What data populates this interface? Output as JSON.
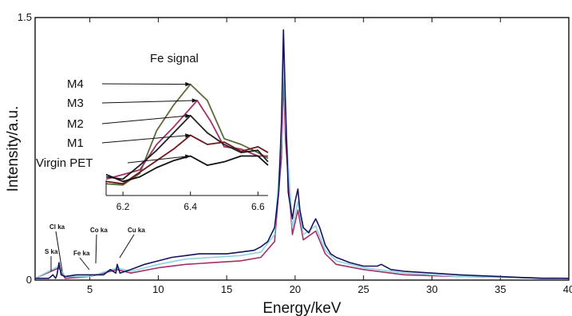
{
  "chart_data": {
    "type": "line",
    "xlabel": "Energy/keV",
    "ylabel": "Intensity/a.u.",
    "xlim": [
      1,
      40
    ],
    "ylim": [
      0,
      1.5
    ],
    "x_ticks": [
      5,
      10,
      15,
      20,
      25,
      30,
      35,
      40
    ],
    "x_tick_labels": [
      "5",
      "10",
      "15",
      "20",
      "25",
      "30",
      "35",
      "40"
    ],
    "y_ticks": [
      0,
      1.5
    ],
    "y_tick_labels": [
      "0",
      "1.5"
    ],
    "colors": {
      "navy": "#14145e",
      "cyan": "#8fd3e0",
      "magenta": "#a0306a",
      "olive": "#5c6b3a",
      "dark": "#222222"
    },
    "series": [
      {
        "color": "#14145e",
        "points": [
          [
            1,
            0.01
          ],
          [
            2,
            0.01
          ],
          [
            2.3,
            0.03
          ],
          [
            2.5,
            0.01
          ],
          [
            2.6,
            0.03
          ],
          [
            2.75,
            0.1
          ],
          [
            2.9,
            0.03
          ],
          [
            3.2,
            0.02
          ],
          [
            4,
            0.03
          ],
          [
            5,
            0.03
          ],
          [
            6,
            0.03
          ],
          [
            6.5,
            0.06
          ],
          [
            6.9,
            0.04
          ],
          [
            7,
            0.09
          ],
          [
            7.2,
            0.04
          ],
          [
            8,
            0.06
          ],
          [
            9,
            0.09
          ],
          [
            10,
            0.11
          ],
          [
            11,
            0.13
          ],
          [
            12,
            0.14
          ],
          [
            13,
            0.15
          ],
          [
            14,
            0.15
          ],
          [
            15,
            0.15
          ],
          [
            16,
            0.16
          ],
          [
            17,
            0.17
          ],
          [
            17.5,
            0.19
          ],
          [
            18,
            0.22
          ],
          [
            18.5,
            0.3
          ],
          [
            18.8,
            0.5
          ],
          [
            19,
            0.9
          ],
          [
            19.15,
            1.43
          ],
          [
            19.3,
            1.0
          ],
          [
            19.5,
            0.5
          ],
          [
            19.8,
            0.35
          ],
          [
            20,
            0.45
          ],
          [
            20.2,
            0.52
          ],
          [
            20.35,
            0.4
          ],
          [
            20.6,
            0.3
          ],
          [
            21,
            0.27
          ],
          [
            21.3,
            0.32
          ],
          [
            21.5,
            0.35
          ],
          [
            21.8,
            0.3
          ],
          [
            22.2,
            0.2
          ],
          [
            22.6,
            0.15
          ],
          [
            23,
            0.13
          ],
          [
            24,
            0.1
          ],
          [
            25,
            0.08
          ],
          [
            26,
            0.08
          ],
          [
            26.3,
            0.09
          ],
          [
            27,
            0.06
          ],
          [
            28,
            0.05
          ],
          [
            30,
            0.04
          ],
          [
            32,
            0.03
          ],
          [
            35,
            0.02
          ],
          [
            38,
            0.01
          ],
          [
            40,
            0.01
          ]
        ]
      },
      {
        "color": "#8fd3e0",
        "points": [
          [
            1,
            0.01
          ],
          [
            2.75,
            0.08
          ],
          [
            3.2,
            0.02
          ],
          [
            5,
            0.02
          ],
          [
            7,
            0.07
          ],
          [
            8,
            0.05
          ],
          [
            10,
            0.09
          ],
          [
            12,
            0.12
          ],
          [
            14,
            0.13
          ],
          [
            16,
            0.14
          ],
          [
            17.5,
            0.16
          ],
          [
            18.5,
            0.26
          ],
          [
            19,
            0.8
          ],
          [
            19.15,
            1.3
          ],
          [
            19.3,
            0.9
          ],
          [
            19.8,
            0.3
          ],
          [
            20.2,
            0.45
          ],
          [
            20.6,
            0.26
          ],
          [
            21.5,
            0.31
          ],
          [
            22.2,
            0.17
          ],
          [
            23,
            0.11
          ],
          [
            25,
            0.07
          ],
          [
            28,
            0.04
          ],
          [
            32,
            0.02
          ],
          [
            40,
            0.01
          ]
        ]
      },
      {
        "color": "#a0306a",
        "points": [
          [
            1,
            0.01
          ],
          [
            2.75,
            0.07
          ],
          [
            3.2,
            0.01
          ],
          [
            5,
            0.02
          ],
          [
            7,
            0.06
          ],
          [
            8,
            0.04
          ],
          [
            10,
            0.07
          ],
          [
            12,
            0.09
          ],
          [
            14,
            0.1
          ],
          [
            16,
            0.11
          ],
          [
            17.5,
            0.13
          ],
          [
            18.5,
            0.22
          ],
          [
            19,
            0.7
          ],
          [
            19.15,
            1.15
          ],
          [
            19.3,
            0.8
          ],
          [
            19.8,
            0.26
          ],
          [
            20.2,
            0.4
          ],
          [
            20.6,
            0.23
          ],
          [
            21.5,
            0.28
          ],
          [
            22.2,
            0.15
          ],
          [
            23,
            0.09
          ],
          [
            25,
            0.06
          ],
          [
            28,
            0.03
          ],
          [
            32,
            0.02
          ],
          [
            40,
            0.01
          ]
        ]
      }
    ],
    "annotations": [
      {
        "text": "S ka",
        "x": 2.3
      },
      {
        "text": "Cl ka",
        "x": 2.75
      },
      {
        "text": "Fe ka",
        "x": 6.5
      },
      {
        "text": "Co ka",
        "x": 6.9
      },
      {
        "text": "Cu ka",
        "x": 8.0
      }
    ],
    "inset": {
      "title": "Fe signal",
      "xlim": [
        6.15,
        6.63
      ],
      "ylim": [
        0,
        1
      ],
      "x_ticks": [
        6.2,
        6.4,
        6.6
      ],
      "x_tick_labels": [
        "6.2",
        "6.4",
        "6.6"
      ],
      "series": [
        {
          "name": "M4",
          "color": "#5c6b3a",
          "arrow_x": 6.4,
          "arrow_y": 0.92,
          "points": [
            [
              6.15,
              0.06
            ],
            [
              6.2,
              0.05
            ],
            [
              6.25,
              0.15
            ],
            [
              6.3,
              0.52
            ],
            [
              6.35,
              0.74
            ],
            [
              6.4,
              0.92
            ],
            [
              6.45,
              0.78
            ],
            [
              6.5,
              0.45
            ],
            [
              6.55,
              0.4
            ],
            [
              6.6,
              0.33
            ],
            [
              6.63,
              0.28
            ]
          ]
        },
        {
          "name": "M3",
          "color": "#a0306a",
          "arrow_x": 6.42,
          "arrow_y": 0.78,
          "points": [
            [
              6.15,
              0.1
            ],
            [
              6.2,
              0.14
            ],
            [
              6.25,
              0.18
            ],
            [
              6.3,
              0.4
            ],
            [
              6.35,
              0.55
            ],
            [
              6.42,
              0.78
            ],
            [
              6.46,
              0.6
            ],
            [
              6.5,
              0.38
            ],
            [
              6.55,
              0.36
            ],
            [
              6.6,
              0.3
            ],
            [
              6.63,
              0.3
            ]
          ]
        },
        {
          "name": "M2",
          "color": "#222222",
          "arrow_x": 6.4,
          "arrow_y": 0.65,
          "points": [
            [
              6.15,
              0.12
            ],
            [
              6.2,
              0.1
            ],
            [
              6.25,
              0.22
            ],
            [
              6.3,
              0.35
            ],
            [
              6.35,
              0.5
            ],
            [
              6.4,
              0.65
            ],
            [
              6.45,
              0.5
            ],
            [
              6.5,
              0.4
            ],
            [
              6.55,
              0.33
            ],
            [
              6.6,
              0.35
            ],
            [
              6.63,
              0.25
            ]
          ]
        },
        {
          "name": "M1",
          "color": "#6b1a1a",
          "arrow_x": 6.4,
          "arrow_y": 0.48,
          "points": [
            [
              6.15,
              0.08
            ],
            [
              6.2,
              0.06
            ],
            [
              6.25,
              0.16
            ],
            [
              6.3,
              0.26
            ],
            [
              6.35,
              0.36
            ],
            [
              6.4,
              0.48
            ],
            [
              6.45,
              0.4
            ],
            [
              6.5,
              0.42
            ],
            [
              6.55,
              0.34
            ],
            [
              6.6,
              0.38
            ],
            [
              6.63,
              0.33
            ]
          ]
        },
        {
          "name": "Virgin PET",
          "color": "#111111",
          "arrow_x": 6.4,
          "arrow_y": 0.3,
          "points": [
            [
              6.15,
              0.14
            ],
            [
              6.2,
              0.08
            ],
            [
              6.25,
              0.12
            ],
            [
              6.3,
              0.2
            ],
            [
              6.35,
              0.26
            ],
            [
              6.4,
              0.3
            ],
            [
              6.45,
              0.22
            ],
            [
              6.5,
              0.25
            ],
            [
              6.55,
              0.3
            ],
            [
              6.6,
              0.3
            ],
            [
              6.63,
              0.22
            ]
          ]
        }
      ]
    }
  }
}
